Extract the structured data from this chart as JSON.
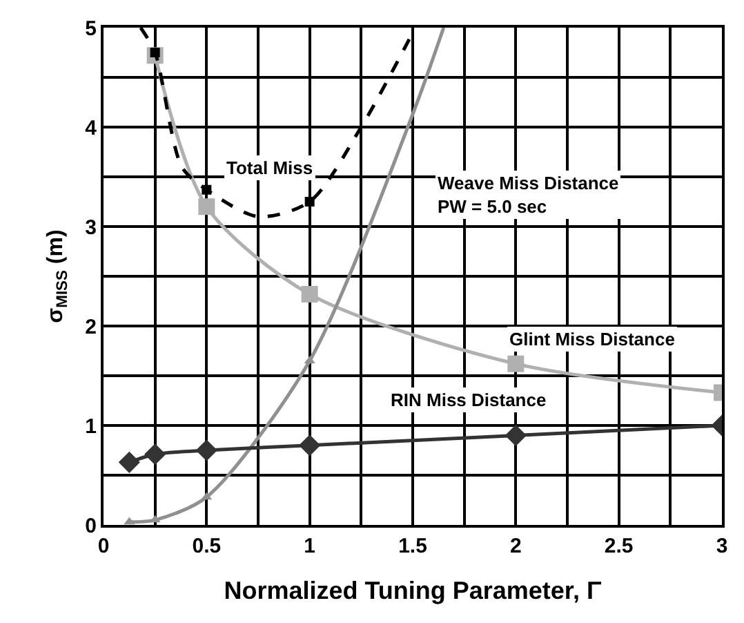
{
  "chart_data": {
    "type": "line",
    "xlabel": "Normalized Tuning Parameter, Γ",
    "ylabel": "σ$_{MISS}$ (m)",
    "series": [
      {
        "color": "#b0b0b0",
        "marker": "square",
        "line_style": "solid",
        "x": [
          0.25,
          0.5,
          1,
          2,
          3
        ],
        "values": [
          4.72,
          3.2,
          2.32,
          1.62,
          1.33
        ]
      },
      {
        "color": "#909090",
        "marker": "none",
        "line_style": "solid",
        "x": [
          0.125,
          0.25,
          0.5,
          1,
          1.5,
          1.65
        ],
        "values": [
          0.03,
          0.05,
          0.28,
          1.65,
          4.13,
          5.0
        ]
      },
      {
        "type": "scatter",
        "color": "#909090",
        "marker": "triangle",
        "x": [
          0.125,
          0.25,
          0.5,
          1
        ],
        "values": [
          0.03,
          0.05,
          0.28,
          1.65
        ]
      },
      {
        "color": "#333333",
        "marker": "diamond",
        "line_style": "solid",
        "x": [
          0.125,
          0.25,
          0.5,
          1,
          2,
          3
        ],
        "values": [
          0.63,
          0.71,
          0.75,
          0.8,
          0.9,
          1.0
        ]
      },
      {
        "color": "#000000",
        "marker": "none",
        "line_style": "dashed",
        "x": [
          0.18,
          0.25,
          0.38,
          0.5,
          0.75,
          1.0,
          1.25,
          1.5
        ],
        "values": [
          5.0,
          4.75,
          3.6,
          3.37,
          3.1,
          3.25,
          4.0,
          4.95
        ]
      },
      {
        "type": "scatter",
        "color": "#000000",
        "marker": "square",
        "x": [
          0.25,
          0.5,
          1
        ],
        "values": [
          4.75,
          3.37,
          3.25
        ]
      }
    ],
    "xlim": [
      0,
      3
    ],
    "xticks": [
      0,
      {
        "value": 0.25,
        "label": null
      },
      0.5,
      {
        "value": 0.75,
        "label": null
      },
      1,
      {
        "value": 1.25,
        "label": null
      },
      1.5,
      {
        "value": 1.75,
        "label": null
      },
      2,
      {
        "value": 2.25,
        "label": null
      },
      2.5,
      {
        "value": 2.75,
        "label": null
      },
      3
    ],
    "ylim": [
      0,
      5
    ],
    "yticks": [
      0,
      {
        "value": 0.5,
        "label": null
      },
      1,
      {
        "value": 1.5,
        "label": null
      },
      2,
      {
        "value": 2.5,
        "label": null
      },
      3,
      {
        "value": 3.5,
        "label": null
      },
      4,
      {
        "value": 4.5,
        "label": null
      },
      5
    ],
    "grid": true,
    "annotations": [
      "Total Miss",
      "Weave Miss Distance\nPW = 5.0 sec",
      "Glint Miss Distance",
      "RIN Miss Distance"
    ]
  }
}
